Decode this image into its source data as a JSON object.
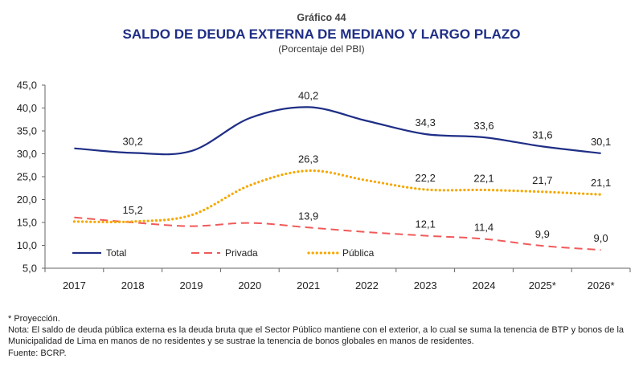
{
  "chart_data": {
    "type": "line",
    "kicker": "Gráfico 44",
    "title": "SALDO DE DEUDA EXTERNA DE MEDIANO Y LARGO PLAZO",
    "subtitle": "(Porcentaje del PBI)",
    "categories": [
      "2017",
      "2018",
      "2019",
      "2020",
      "2021",
      "2022",
      "2023",
      "2024",
      "2025*",
      "2026*"
    ],
    "ylim": [
      5,
      45
    ],
    "yticks": [
      "5,0",
      "10,0",
      "15,0",
      "20,0",
      "25,0",
      "30,0",
      "35,0",
      "40,0",
      "45,0"
    ],
    "grid": false,
    "legend_position": "bottom-left",
    "series": [
      {
        "name": "Total",
        "color": "#1f2e86",
        "style": "solid",
        "values": [
          31.2,
          30.2,
          30.6,
          37.8,
          40.2,
          37.2,
          34.3,
          33.6,
          31.6,
          30.1
        ],
        "labels": [
          "",
          "30,2",
          "",
          "",
          "40,2",
          "",
          "34,3",
          "33,6",
          "31,6",
          "30,1"
        ]
      },
      {
        "name": "Privada",
        "color": "#f05a5a",
        "style": "dashed",
        "values": [
          16.1,
          15.0,
          14.2,
          14.9,
          13.9,
          12.9,
          12.1,
          11.4,
          9.9,
          9.0
        ],
        "labels": [
          "",
          "",
          "",
          "",
          "13,9",
          "",
          "12,1",
          "11,4",
          "9,9",
          "9,0"
        ]
      },
      {
        "name": "Pública",
        "color": "#f6a800",
        "style": "dotted",
        "values": [
          15.2,
          15.2,
          16.6,
          23.1,
          26.3,
          24.2,
          22.2,
          22.1,
          21.7,
          21.1
        ],
        "labels": [
          "",
          "15,2",
          "",
          "",
          "26,3",
          "",
          "22,2",
          "22,1",
          "21,7",
          "21,1"
        ]
      }
    ]
  },
  "notes": {
    "projection": "* Proyección.",
    "note": "Nota: El saldo de deuda pública externa es la deuda bruta que el Sector Público mantiene con el exterior, a lo cual se suma la tenencia de BTP y bonos de la Municipalidad de Lima en manos de no residentes y se sustrae la tenencia de bonos globales en manos de residentes.",
    "source": "Fuente: BCRP."
  }
}
